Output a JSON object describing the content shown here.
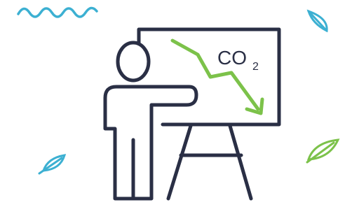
{
  "board": {
    "label": "CO",
    "subscript": "2"
  }
}
